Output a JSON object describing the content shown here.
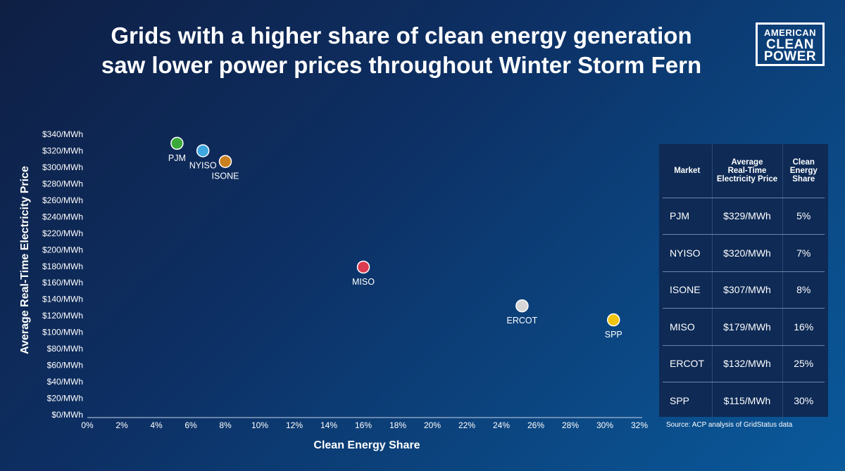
{
  "title": {
    "line1": "Grids with a higher share of clean energy generation",
    "line2": "saw lower power prices throughout Winter Storm Fern"
  },
  "logo": {
    "line1": "AMERICAN",
    "line2": "CLEAN",
    "line3": "POWER"
  },
  "chart_data": {
    "type": "scatter",
    "title": "Grids with a higher share of clean energy generation saw lower power prices throughout Winter Storm Fern",
    "xlabel": "Clean Energy Share",
    "ylabel": "Average Real-Time Electricity Price",
    "xlim": [
      0,
      32
    ],
    "ylim": [
      0,
      340
    ],
    "x_ticks": [
      "0%",
      "2%",
      "4%",
      "6%",
      "8%",
      "10%",
      "12%",
      "14%",
      "16%",
      "18%",
      "20%",
      "22%",
      "24%",
      "26%",
      "28%",
      "30%",
      "32%"
    ],
    "y_ticks": [
      "$0/MWh",
      "$20/MWh",
      "$40/MWh",
      "$60/MWh",
      "$80/MWh",
      "$100/MWh",
      "$120/MWh",
      "$140/MWh",
      "$160/MWh",
      "$180/MWh",
      "$200/MWh",
      "$220/MWh",
      "$240/MWh",
      "$260/MWh",
      "$280/MWh",
      "$300/MWh",
      "$320/MWh",
      "$340/MWh"
    ],
    "grid": false,
    "points": [
      {
        "label": "PJM",
        "x": 5.2,
        "y": 329,
        "color": "#3aaa3a"
      },
      {
        "label": "NYISO",
        "x": 6.7,
        "y": 320,
        "color": "#3ea7e0"
      },
      {
        "label": "ISONE",
        "x": 8.0,
        "y": 307,
        "color": "#c9801e"
      },
      {
        "label": "MISO",
        "x": 16.0,
        "y": 179,
        "color": "#dc3b4f"
      },
      {
        "label": "ERCOT",
        "x": 25.2,
        "y": 132,
        "color": "#d6d6d6"
      },
      {
        "label": "SPP",
        "x": 30.5,
        "y": 115,
        "color": "#f1c40f"
      }
    ]
  },
  "table": {
    "headers": {
      "market": "Market",
      "price": [
        "Average",
        "Real-Time",
        "Electricity Price"
      ],
      "share": [
        "Clean",
        "Energy",
        "Share"
      ]
    },
    "rows": [
      {
        "market": "PJM",
        "price": "$329/MWh",
        "share": "5%"
      },
      {
        "market": "NYISO",
        "price": "$320/MWh",
        "share": "7%"
      },
      {
        "market": "ISONE",
        "price": "$307/MWh",
        "share": "8%"
      },
      {
        "market": "MISO",
        "price": "$179/MWh",
        "share": "16%"
      },
      {
        "market": "ERCOT",
        "price": "$132/MWh",
        "share": "25%"
      },
      {
        "market": "SPP",
        "price": "$115/MWh",
        "share": "30%"
      }
    ]
  },
  "source": "Source: ACP analysis of GridStatus data"
}
